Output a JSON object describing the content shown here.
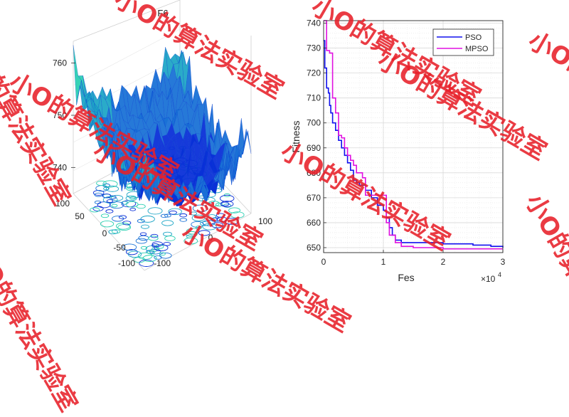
{
  "chart_data": [
    {
      "type": "surface",
      "title": "F6",
      "zlim": [
        735,
        765
      ],
      "z_ticks": [
        740,
        750,
        760
      ],
      "x_ticks": [
        -100,
        0,
        100
      ],
      "y_ticks": [
        100,
        50,
        0,
        -50,
        -100
      ],
      "colormap": [
        "#0a2fd8",
        "#1a72d6",
        "#1fa6c6",
        "#2bd0b2"
      ]
    },
    {
      "type": "line",
      "xlabel": "Fes",
      "ylabel": "Fitness",
      "x_exponent": "×10",
      "x_exponent_power": "4",
      "xlim": [
        0,
        3
      ],
      "ylim": [
        648,
        741
      ],
      "x_ticks": [
        0,
        1,
        2,
        3
      ],
      "y_ticks": [
        650,
        660,
        670,
        680,
        690,
        700,
        710,
        720,
        730,
        740
      ],
      "grid": true,
      "legend_position": "top-right",
      "series": [
        {
          "name": "PSO",
          "color": "#1010ee",
          "x": [
            0,
            0.02,
            0.05,
            0.08,
            0.1,
            0.12,
            0.15,
            0.2,
            0.25,
            0.3,
            0.35,
            0.4,
            0.45,
            0.5,
            0.55,
            0.6,
            0.7,
            0.8,
            0.9,
            1.0,
            1.05,
            1.1,
            1.15,
            1.2,
            1.3,
            1.5,
            2.0,
            2.5,
            2.8,
            3.0
          ],
          "y": [
            733,
            722,
            714,
            712,
            707,
            704,
            700,
            697,
            693,
            690,
            687,
            684,
            681,
            677,
            676,
            675,
            673,
            670,
            667,
            665,
            662,
            658,
            655,
            653,
            652,
            652,
            651.5,
            651,
            650.5,
            650
          ]
        },
        {
          "name": "MPSO",
          "color": "#e010e0",
          "x": [
            0,
            0.05,
            0.1,
            0.15,
            0.2,
            0.25,
            0.3,
            0.35,
            0.4,
            0.45,
            0.5,
            0.55,
            0.6,
            0.65,
            0.7,
            0.85,
            1.0,
            1.05,
            1.1,
            1.2,
            1.3,
            1.5,
            2.0,
            2.5,
            3.0
          ],
          "y": [
            741,
            729,
            728,
            710,
            704,
            695,
            694,
            690,
            687,
            685,
            683,
            680,
            680,
            678,
            671,
            671,
            671,
            660,
            655,
            652,
            650.5,
            650,
            649.5,
            649.5,
            649.5
          ]
        }
      ]
    }
  ],
  "watermark": "小O的算法实验室"
}
